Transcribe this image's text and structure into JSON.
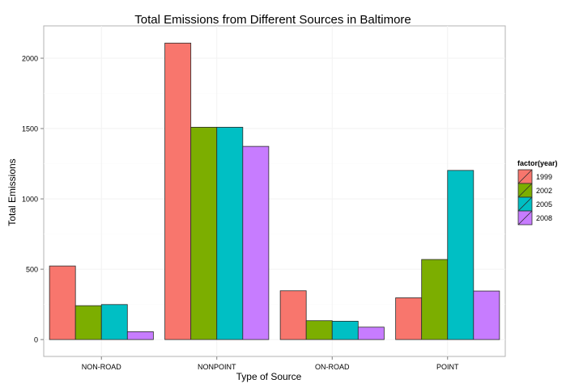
{
  "chart_data": {
    "type": "bar",
    "title": "Total Emissions from Different Sources in Baltimore",
    "xlabel": "Type of Source",
    "ylabel": "Total Emissions",
    "categories": [
      "NON-ROAD",
      "NONPOINT",
      "ON-ROAD",
      "POINT"
    ],
    "series": [
      {
        "name": "1999",
        "color": "#F8766D",
        "values": [
          522.94,
          2107.63,
          346.82,
          296.8
        ]
      },
      {
        "name": "2002",
        "color": "#7CAE00",
        "values": [
          240.85,
          1509.5,
          134.31,
          569.26
        ]
      },
      {
        "name": "2005",
        "color": "#00BFC4",
        "values": [
          248.93,
          1509.5,
          130.43,
          1202.49
        ]
      },
      {
        "name": "2008",
        "color": "#C77CFF",
        "values": [
          55.82,
          1373.21,
          88.28,
          345.0
        ]
      }
    ],
    "ylim": [
      -120,
      2230
    ],
    "yticks": [
      0,
      500,
      1000,
      1500,
      2000
    ],
    "grid": true,
    "legend": {
      "title": "factor(year)",
      "position": "right"
    }
  }
}
